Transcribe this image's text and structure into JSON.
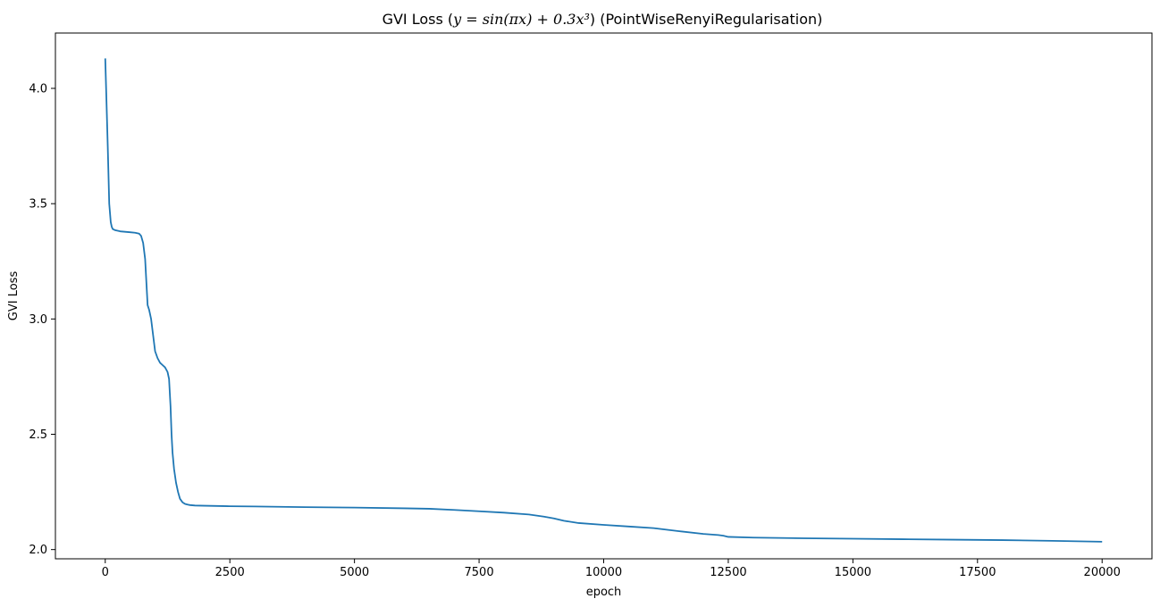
{
  "chart_data": {
    "type": "line",
    "title_parts": {
      "prefix": "GVI Loss (",
      "formula": "y = sin(πx) + 0.3x³",
      "suffix": ") (PointWiseRenyiRegularisation)"
    },
    "xlabel": "epoch",
    "ylabel": "GVI Loss",
    "xlim": [
      -1000,
      21000
    ],
    "ylim": [
      1.96,
      4.24
    ],
    "x_ticks": [
      0,
      2500,
      5000,
      7500,
      10000,
      12500,
      15000,
      17500,
      20000
    ],
    "x_tick_labels": [
      "0",
      "2500",
      "5000",
      "7500",
      "10000",
      "12500",
      "15000",
      "17500",
      "20000"
    ],
    "y_ticks": [
      2.0,
      2.5,
      3.0,
      3.5,
      4.0
    ],
    "y_tick_labels": [
      "2.0",
      "2.5",
      "3.0",
      "3.5",
      "4.0"
    ],
    "grid": false,
    "line_color": "#1f77b4",
    "series": [
      {
        "x": [
          0,
          20,
          50,
          80,
          110,
          130,
          150,
          200,
          300,
          400,
          500,
          600,
          680,
          720,
          760,
          800,
          830,
          850,
          880,
          920,
          960,
          1000,
          1050,
          1100,
          1150,
          1200,
          1250,
          1280,
          1310,
          1330,
          1350,
          1380,
          1420,
          1460,
          1500,
          1550,
          1600,
          1650,
          1700,
          1800,
          2000,
          2500,
          3000,
          4000,
          5000,
          6000,
          6500,
          7000,
          7500,
          8000,
          8500,
          8800,
          9000,
          9200,
          9500,
          10000,
          10500,
          11000,
          11500,
          12000,
          12300,
          12400,
          12500,
          13000,
          14000,
          15000,
          16000,
          17000,
          18000,
          19000,
          20000
        ],
        "y": [
          4.13,
          3.98,
          3.75,
          3.5,
          3.42,
          3.4,
          3.39,
          3.385,
          3.38,
          3.378,
          3.376,
          3.374,
          3.37,
          3.36,
          3.33,
          3.26,
          3.14,
          3.06,
          3.04,
          3.0,
          2.93,
          2.86,
          2.83,
          2.81,
          2.8,
          2.79,
          2.77,
          2.74,
          2.62,
          2.5,
          2.42,
          2.35,
          2.29,
          2.25,
          2.22,
          2.205,
          2.198,
          2.195,
          2.193,
          2.191,
          2.19,
          2.188,
          2.187,
          2.184,
          2.182,
          2.179,
          2.177,
          2.172,
          2.166,
          2.16,
          2.152,
          2.143,
          2.135,
          2.125,
          2.115,
          2.107,
          2.1,
          2.093,
          2.08,
          2.068,
          2.063,
          2.06,
          2.055,
          2.052,
          2.049,
          2.047,
          2.045,
          2.043,
          2.041,
          2.038,
          2.034
        ]
      }
    ]
  }
}
